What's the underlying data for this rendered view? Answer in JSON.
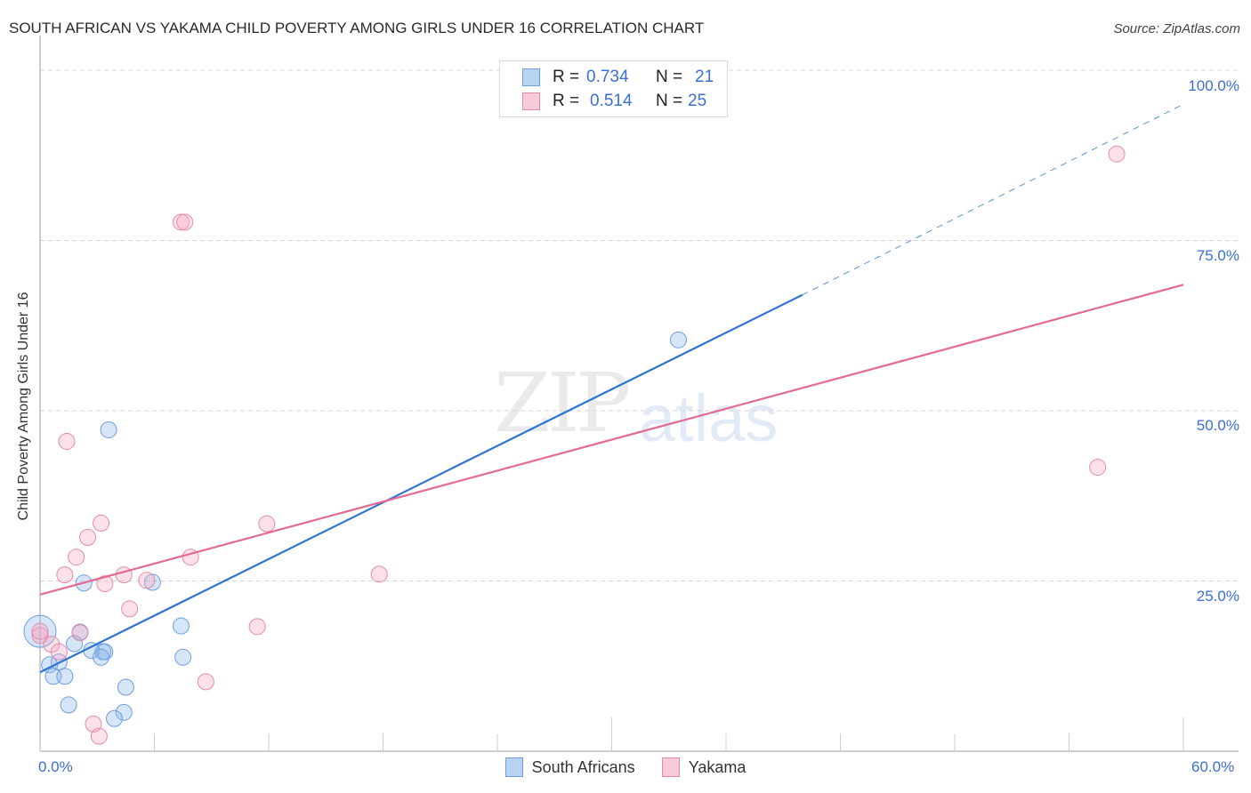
{
  "header": {
    "title": "SOUTH AFRICAN VS YAKAMA CHILD POVERTY AMONG GIRLS UNDER 16 CORRELATION CHART",
    "source": "Source: ZipAtlas.com"
  },
  "watermark": {
    "zip": "ZIP",
    "atlas": "atlas"
  },
  "legend": {
    "rows": [
      {
        "r_label": "R =",
        "r_value": "0.734",
        "n_label": "N =",
        "n_value": "21",
        "color": "#a9c8f0"
      },
      {
        "r_label": "R =",
        "r_value": "0.514",
        "n_label": "N =",
        "n_value": "25",
        "color": "#f6bccd"
      }
    ]
  },
  "axes": {
    "ylabel": "Child Poverty Among Girls Under 16",
    "yticks": [
      "100.0%",
      "75.0%",
      "50.0%",
      "25.0%"
    ],
    "xticks": {
      "left": "0.0%",
      "right": "60.0%"
    }
  },
  "bottom_legend": {
    "items": [
      {
        "label": "South Africans",
        "color": "#a9c8f0",
        "border": "#6d9fdf"
      },
      {
        "label": "Yakama",
        "color": "#f6bccd",
        "border": "#e58aa8"
      }
    ]
  },
  "colors": {
    "blue_line": "#2f74d0",
    "pink_line": "#e36a93",
    "blue_fill": "rgba(140,180,235,0.35)",
    "blue_stroke": "#6d9fdf",
    "pink_fill": "rgba(245,170,195,0.35)",
    "pink_stroke": "#e58aa8",
    "tick_text": "#3b6fd0"
  },
  "chart_data": {
    "type": "scatter",
    "title": "SOUTH AFRICAN VS YAKAMA CHILD POVERTY AMONG GIRLS UNDER 16 CORRELATION CHART",
    "xlabel": "",
    "ylabel": "Child Poverty Among Girls Under 16",
    "xlim": [
      0,
      60
    ],
    "ylim": [
      0,
      100
    ],
    "grid": true,
    "legend_position": "top-center and bottom",
    "series": [
      {
        "name": "South Africans",
        "r": 0.734,
        "n": 21,
        "points": [
          [
            33.5,
            60.4
          ],
          [
            3.6,
            47.2
          ],
          [
            2.3,
            24.7
          ],
          [
            5.9,
            24.8
          ],
          [
            7.4,
            18.4
          ],
          [
            7.5,
            13.8
          ],
          [
            2.1,
            17.5
          ],
          [
            1.8,
            15.8
          ],
          [
            3.3,
            14.6
          ],
          [
            2.7,
            14.8
          ],
          [
            3.4,
            14.6
          ],
          [
            3.2,
            13.8
          ],
          [
            1.0,
            13.1
          ],
          [
            0.5,
            12.7
          ],
          [
            0.0,
            17.6
          ],
          [
            0.7,
            11.0
          ],
          [
            1.3,
            11.0
          ],
          [
            4.5,
            9.4
          ],
          [
            1.5,
            6.8
          ],
          [
            4.4,
            5.7
          ],
          [
            3.9,
            4.8
          ]
        ],
        "trendline": {
          "x0": 0,
          "y0": 11.6,
          "x1": 40,
          "y1": 67.0,
          "dashed_to": {
            "x": 60,
            "y": 95.0
          }
        }
      },
      {
        "name": "Yakama",
        "r": 0.514,
        "n": 25,
        "points": [
          [
            56.5,
            87.7
          ],
          [
            7.4,
            77.7
          ],
          [
            7.6,
            77.7
          ],
          [
            1.4,
            45.5
          ],
          [
            55.5,
            41.7
          ],
          [
            3.2,
            33.5
          ],
          [
            11.9,
            33.4
          ],
          [
            2.5,
            31.4
          ],
          [
            1.9,
            28.5
          ],
          [
            7.9,
            28.5
          ],
          [
            1.3,
            25.9
          ],
          [
            4.4,
            25.9
          ],
          [
            3.4,
            24.6
          ],
          [
            5.6,
            25.1
          ],
          [
            17.8,
            26.0
          ],
          [
            4.7,
            20.9
          ],
          [
            11.4,
            18.3
          ],
          [
            0.0,
            17.0
          ],
          [
            2.1,
            17.4
          ],
          [
            0.6,
            15.7
          ],
          [
            1.0,
            14.6
          ],
          [
            8.7,
            10.2
          ],
          [
            2.8,
            4.0
          ],
          [
            3.1,
            2.2
          ],
          [
            0.0,
            17.6
          ]
        ],
        "trendline": {
          "x0": 0,
          "y0": 23.0,
          "x1": 60,
          "y1": 68.5
        }
      }
    ]
  }
}
